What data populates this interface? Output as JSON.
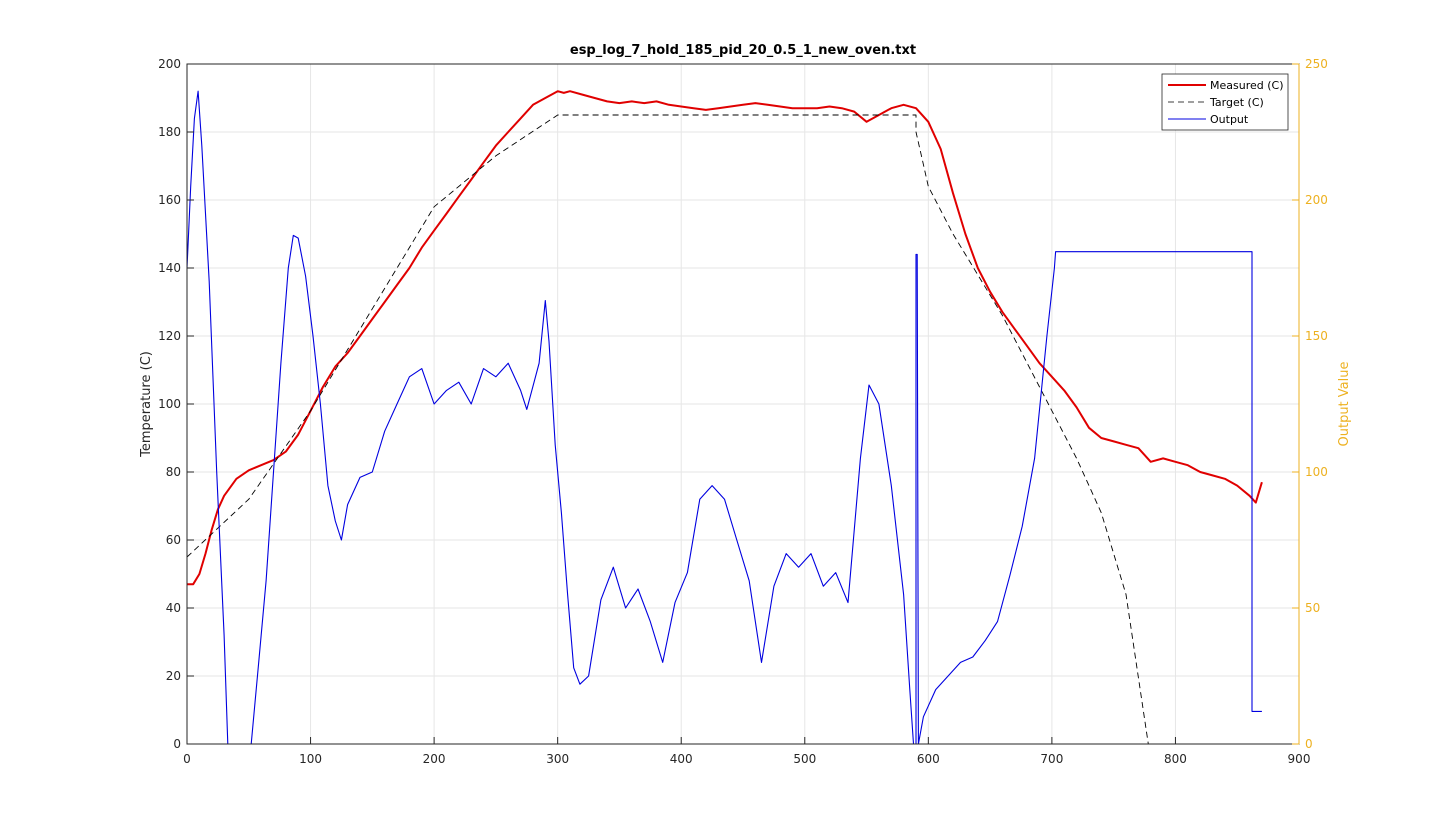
{
  "chart_data": {
    "type": "line",
    "title": "esp_log_7_hold_185_pid_20_0.5_1_new_oven.txt",
    "xlabel": "",
    "ylabel_left": "Temperature (C)",
    "ylabel_right": "Output Value",
    "xlim": [
      0,
      900
    ],
    "ylim_left": [
      0,
      200
    ],
    "ylim_right": [
      0,
      250
    ],
    "xticks": [
      0,
      100,
      200,
      300,
      400,
      500,
      600,
      700,
      800,
      900
    ],
    "yticks_left": [
      0,
      20,
      40,
      60,
      80,
      100,
      120,
      140,
      160,
      180,
      200
    ],
    "yticks_right": [
      0,
      50,
      100,
      150,
      200,
      250
    ],
    "grid": true,
    "legend_position": "top-right",
    "colors": {
      "measured": "#e00000",
      "target": "#000000",
      "output": "#0000e0",
      "right_axis": "#edb120",
      "grid": "#e6e6e6"
    },
    "series": [
      {
        "name": "Measured (C)",
        "axis": "left",
        "style": "solid",
        "points": [
          [
            0,
            47
          ],
          [
            5,
            47
          ],
          [
            10,
            50
          ],
          [
            15,
            56
          ],
          [
            20,
            63
          ],
          [
            25,
            69
          ],
          [
            30,
            73
          ],
          [
            40,
            78
          ],
          [
            50,
            80.5
          ],
          [
            60,
            82
          ],
          [
            70,
            83.5
          ],
          [
            80,
            86
          ],
          [
            90,
            91
          ],
          [
            100,
            98
          ],
          [
            110,
            105
          ],
          [
            120,
            111
          ],
          [
            130,
            115
          ],
          [
            140,
            120
          ],
          [
            150,
            125
          ],
          [
            160,
            130
          ],
          [
            170,
            135
          ],
          [
            180,
            140
          ],
          [
            190,
            146
          ],
          [
            200,
            151
          ],
          [
            210,
            156
          ],
          [
            220,
            161
          ],
          [
            230,
            166
          ],
          [
            240,
            171
          ],
          [
            250,
            176
          ],
          [
            260,
            180
          ],
          [
            270,
            184
          ],
          [
            280,
            188
          ],
          [
            290,
            190
          ],
          [
            300,
            192
          ],
          [
            305,
            191.5
          ],
          [
            310,
            192
          ],
          [
            320,
            191
          ],
          [
            330,
            190
          ],
          [
            340,
            189
          ],
          [
            350,
            188.5
          ],
          [
            360,
            189
          ],
          [
            370,
            188.5
          ],
          [
            380,
            189
          ],
          [
            390,
            188
          ],
          [
            400,
            187.5
          ],
          [
            410,
            187
          ],
          [
            420,
            186.5
          ],
          [
            430,
            187
          ],
          [
            440,
            187.5
          ],
          [
            450,
            188
          ],
          [
            460,
            188.5
          ],
          [
            470,
            188
          ],
          [
            480,
            187.5
          ],
          [
            490,
            187
          ],
          [
            500,
            187
          ],
          [
            510,
            187
          ],
          [
            520,
            187.5
          ],
          [
            530,
            187
          ],
          [
            540,
            186
          ],
          [
            550,
            183
          ],
          [
            560,
            185
          ],
          [
            570,
            187
          ],
          [
            580,
            188
          ],
          [
            590,
            187
          ],
          [
            600,
            183
          ],
          [
            610,
            175
          ],
          [
            620,
            162
          ],
          [
            630,
            150
          ],
          [
            640,
            140
          ],
          [
            650,
            133
          ],
          [
            660,
            127
          ],
          [
            670,
            122
          ],
          [
            680,
            117
          ],
          [
            690,
            112
          ],
          [
            700,
            108
          ],
          [
            710,
            104
          ],
          [
            720,
            99
          ],
          [
            730,
            93
          ],
          [
            740,
            90
          ],
          [
            750,
            89
          ],
          [
            760,
            88
          ],
          [
            770,
            87
          ],
          [
            780,
            83
          ],
          [
            790,
            84
          ],
          [
            800,
            83
          ],
          [
            810,
            82
          ],
          [
            820,
            80
          ],
          [
            830,
            79
          ],
          [
            840,
            78
          ],
          [
            850,
            76
          ],
          [
            860,
            73
          ],
          [
            865,
            71
          ],
          [
            870,
            77
          ]
        ]
      },
      {
        "name": "Target (C)",
        "axis": "left",
        "style": "dashed",
        "points": [
          [
            0,
            55
          ],
          [
            50,
            72
          ],
          [
            100,
            98
          ],
          [
            150,
            128
          ],
          [
            200,
            158
          ],
          [
            250,
            173
          ],
          [
            300,
            185
          ],
          [
            590,
            185
          ],
          [
            590,
            180
          ],
          [
            595,
            172
          ],
          [
            600,
            164
          ],
          [
            620,
            150
          ],
          [
            640,
            138
          ],
          [
            660,
            126
          ],
          [
            680,
            112
          ],
          [
            700,
            98
          ],
          [
            720,
            84
          ],
          [
            740,
            68
          ],
          [
            760,
            44
          ],
          [
            778,
            0
          ]
        ]
      },
      {
        "name": "Output",
        "axis": "right",
        "style": "solid",
        "points": [
          [
            0,
            175
          ],
          [
            3,
            205
          ],
          [
            6,
            230
          ],
          [
            9,
            240
          ],
          [
            12,
            220
          ],
          [
            18,
            170
          ],
          [
            24,
            100
          ],
          [
            30,
            40
          ],
          [
            33,
            0
          ],
          [
            52,
            0
          ],
          [
            58,
            30
          ],
          [
            64,
            60
          ],
          [
            70,
            100
          ],
          [
            76,
            140
          ],
          [
            82,
            175
          ],
          [
            86,
            187
          ],
          [
            90,
            186
          ],
          [
            96,
            172
          ],
          [
            102,
            150
          ],
          [
            108,
            125
          ],
          [
            114,
            95
          ],
          [
            120,
            82
          ],
          [
            125,
            75
          ],
          [
            130,
            88
          ],
          [
            140,
            98
          ],
          [
            150,
            100
          ],
          [
            160,
            115
          ],
          [
            170,
            125
          ],
          [
            180,
            135
          ],
          [
            190,
            138
          ],
          [
            200,
            125
          ],
          [
            210,
            130
          ],
          [
            220,
            133
          ],
          [
            230,
            125
          ],
          [
            240,
            138
          ],
          [
            250,
            135
          ],
          [
            260,
            140
          ],
          [
            270,
            130
          ],
          [
            275,
            123
          ],
          [
            285,
            140
          ],
          [
            290,
            163
          ],
          [
            293,
            148
          ],
          [
            298,
            110
          ],
          [
            303,
            85
          ],
          [
            308,
            55
          ],
          [
            313,
            28
          ],
          [
            318,
            22
          ],
          [
            325,
            25
          ],
          [
            335,
            53
          ],
          [
            345,
            65
          ],
          [
            355,
            50
          ],
          [
            365,
            57
          ],
          [
            375,
            45
          ],
          [
            385,
            30
          ],
          [
            395,
            52
          ],
          [
            405,
            63
          ],
          [
            415,
            90
          ],
          [
            425,
            95
          ],
          [
            435,
            90
          ],
          [
            445,
            75
          ],
          [
            455,
            60
          ],
          [
            465,
            30
          ],
          [
            475,
            58
          ],
          [
            485,
            70
          ],
          [
            495,
            65
          ],
          [
            505,
            70
          ],
          [
            515,
            58
          ],
          [
            525,
            63
          ],
          [
            535,
            52
          ],
          [
            545,
            105
          ],
          [
            552,
            132
          ],
          [
            560,
            125
          ],
          [
            570,
            95
          ],
          [
            580,
            55
          ],
          [
            585,
            20
          ],
          [
            588,
            0
          ],
          [
            590,
            0
          ],
          [
            590,
            180
          ],
          [
            591,
            180
          ],
          [
            592,
            0
          ],
          [
            596,
            10
          ],
          [
            606,
            20
          ],
          [
            616,
            25
          ],
          [
            626,
            30
          ],
          [
            636,
            32
          ],
          [
            646,
            38
          ],
          [
            656,
            45
          ],
          [
            666,
            62
          ],
          [
            676,
            80
          ],
          [
            686,
            105
          ],
          [
            696,
            150
          ],
          [
            702,
            175
          ],
          [
            703,
            181
          ],
          [
            862,
            181
          ],
          [
            862,
            12
          ],
          [
            870,
            12
          ]
        ]
      }
    ]
  }
}
